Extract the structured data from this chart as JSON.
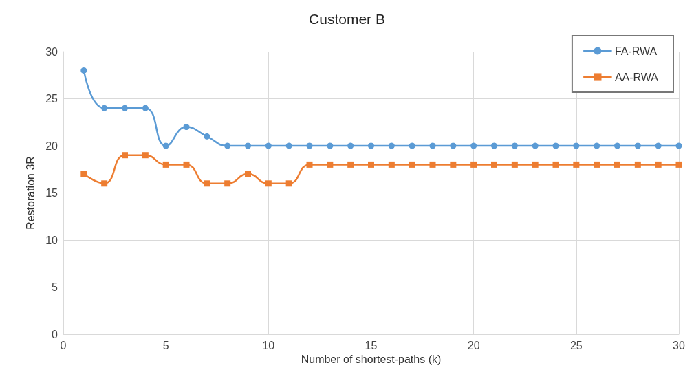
{
  "chart_data": {
    "type": "line",
    "title": "Customer B",
    "xlabel": "Number of shortest-paths (k)",
    "ylabel": "Restoration 3R",
    "x": [
      1,
      2,
      3,
      4,
      5,
      6,
      7,
      8,
      9,
      10,
      11,
      12,
      13,
      14,
      15,
      16,
      17,
      18,
      19,
      20,
      21,
      22,
      23,
      24,
      25,
      26,
      27,
      28,
      29,
      30
    ],
    "series": [
      {
        "name": "FA-RWA",
        "color": "#5b9bd5",
        "marker": "circle",
        "values": [
          28,
          24,
          24,
          24,
          20,
          22,
          21,
          20,
          20,
          20,
          20,
          20,
          20,
          20,
          20,
          20,
          20,
          20,
          20,
          20,
          20,
          20,
          20,
          20,
          20,
          20,
          20,
          20,
          20,
          20
        ]
      },
      {
        "name": "AA-RWA",
        "color": "#ed7d31",
        "marker": "square",
        "values": [
          17,
          16,
          19,
          19,
          18,
          18,
          16,
          16,
          17,
          16,
          16,
          18,
          18,
          18,
          18,
          18,
          18,
          18,
          18,
          18,
          18,
          18,
          18,
          18,
          18,
          18,
          18,
          18,
          18,
          18
        ]
      }
    ],
    "xlim": [
      0,
      30
    ],
    "xticks": [
      0,
      5,
      10,
      15,
      20,
      25,
      30
    ],
    "ylim": [
      0,
      30
    ],
    "yticks": [
      0,
      5,
      10,
      15,
      20,
      25,
      30
    ],
    "grid": true,
    "legend": "top right",
    "line_style": "solid"
  }
}
